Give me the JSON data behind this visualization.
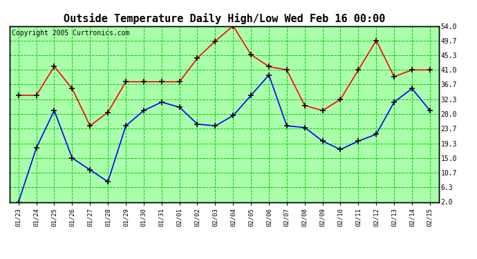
{
  "title": "Outside Temperature Daily High/Low Wed Feb 16 00:00",
  "copyright": "Copyright 2005 Curtronics.com",
  "x_labels": [
    "01/23",
    "01/24",
    "01/25",
    "01/26",
    "01/27",
    "01/28",
    "01/29",
    "01/30",
    "01/31",
    "02/01",
    "02/02",
    "02/03",
    "02/04",
    "02/05",
    "02/06",
    "02/07",
    "02/08",
    "02/09",
    "02/10",
    "02/11",
    "02/12",
    "02/13",
    "02/14",
    "02/15"
  ],
  "high_values": [
    33.5,
    33.5,
    42.0,
    35.5,
    24.5,
    28.5,
    37.5,
    37.5,
    37.5,
    37.5,
    44.5,
    49.5,
    54.0,
    45.5,
    42.0,
    41.0,
    30.5,
    29.0,
    32.3,
    41.0,
    49.7,
    39.0,
    41.0,
    41.0
  ],
  "low_values": [
    2.0,
    18.0,
    29.0,
    15.0,
    11.5,
    8.0,
    24.5,
    29.0,
    31.5,
    30.0,
    25.0,
    24.5,
    27.5,
    33.5,
    39.5,
    24.5,
    24.0,
    20.0,
    17.5,
    20.0,
    22.0,
    31.5,
    35.5,
    29.0
  ],
  "high_color": "#ff0000",
  "low_color": "#0000ff",
  "fig_bg_color": "#ffffff",
  "plot_bg_color": "#aaffaa",
  "grid_color": "#00cc00",
  "border_color": "#000000",
  "title_fontsize": 11,
  "copyright_fontsize": 7,
  "ylabel_right": [
    "2.0",
    "6.3",
    "10.7",
    "15.0",
    "19.3",
    "23.7",
    "28.0",
    "32.3",
    "36.7",
    "41.0",
    "45.3",
    "49.7",
    "54.0"
  ],
  "ytick_values": [
    2.0,
    6.3,
    10.7,
    15.0,
    19.3,
    23.7,
    28.0,
    32.3,
    36.7,
    41.0,
    45.3,
    49.7,
    54.0
  ],
  "ymin": 2.0,
  "ymax": 54.0,
  "marker": "+",
  "marker_size": 6,
  "marker_color": "#000000",
  "line_width": 1.2
}
